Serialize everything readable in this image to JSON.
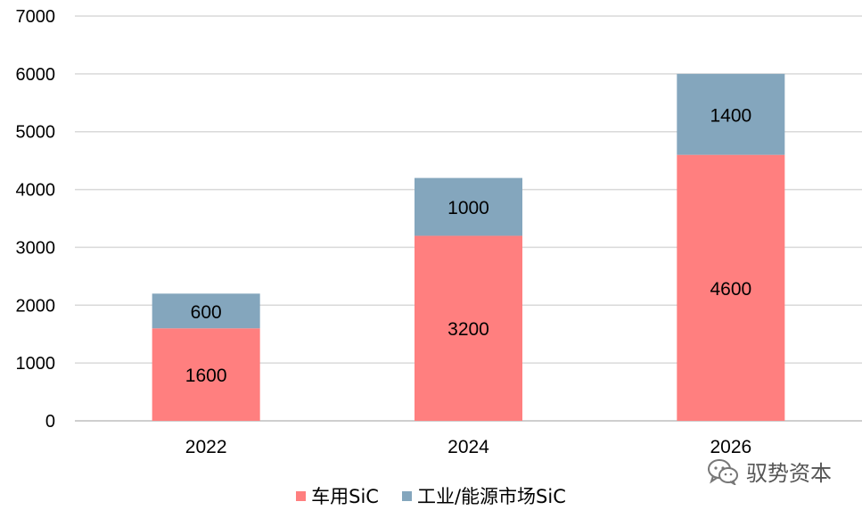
{
  "chart_data": {
    "type": "bar",
    "stacked": true,
    "categories": [
      "2022",
      "2024",
      "2026"
    ],
    "series": [
      {
        "name": "车用SiC",
        "values": [
          1600,
          3200,
          4600
        ],
        "color": "#ff7f7f"
      },
      {
        "name": "工业/能源市场SiC",
        "values": [
          600,
          1000,
          1400
        ],
        "color": "#84a6bd"
      }
    ],
    "ylim": [
      0,
      7000
    ],
    "yticks": [
      0,
      1000,
      2000,
      3000,
      4000,
      5000,
      6000,
      7000
    ],
    "grid": true,
    "gridColor": "#d9d9d9",
    "title": "",
    "xlabel": "",
    "ylabel": "",
    "legend_position": "bottom",
    "data_labels": true
  },
  "watermark": {
    "text": "驭势资本",
    "icon": "wechat-icon"
  }
}
